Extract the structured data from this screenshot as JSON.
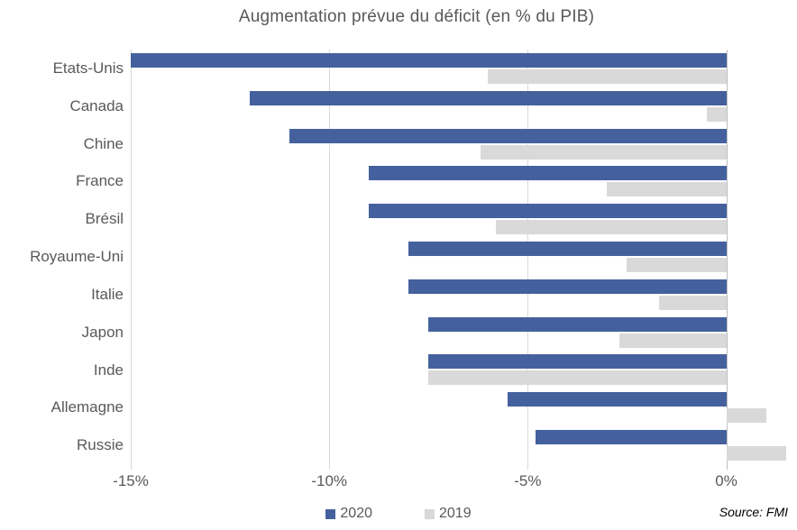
{
  "chart_data": {
    "type": "bar",
    "orientation": "horizontal",
    "title": "Augmentation prévue du déficit (en % du PIB)",
    "source": "Source: FMI",
    "xlabel": "",
    "ylabel": "",
    "xlim": [
      -15,
      1.6
    ],
    "grid": true,
    "legend_position": "bottom",
    "x_ticks": [
      {
        "value": -15,
        "label": "-15%"
      },
      {
        "value": -10,
        "label": "-10%"
      },
      {
        "value": -5,
        "label": "-5%"
      },
      {
        "value": 0,
        "label": "0%"
      }
    ],
    "categories": [
      "Etats-Unis",
      "Canada",
      "Chine",
      "France",
      "Brésil",
      "Royaume-Uni",
      "Italie",
      "Japon",
      "Inde",
      "Allemagne",
      "Russie"
    ],
    "series": [
      {
        "name": "2020",
        "color": "#45619D",
        "values": [
          -15.0,
          -12.0,
          -11.0,
          -9.0,
          -9.0,
          -8.0,
          -8.0,
          -7.5,
          -7.5,
          -5.5,
          -4.8
        ]
      },
      {
        "name": "2019",
        "color": "#D9D9D9",
        "values": [
          -6.0,
          -0.5,
          -6.2,
          -3.0,
          -5.8,
          -2.5,
          -1.7,
          -2.7,
          -7.5,
          1.0,
          1.5
        ]
      }
    ]
  },
  "colors": {
    "text": "#595959",
    "gridline": "#D9D9D9",
    "zero_line": "#BFBFBF",
    "background": "#FFFFFF"
  }
}
